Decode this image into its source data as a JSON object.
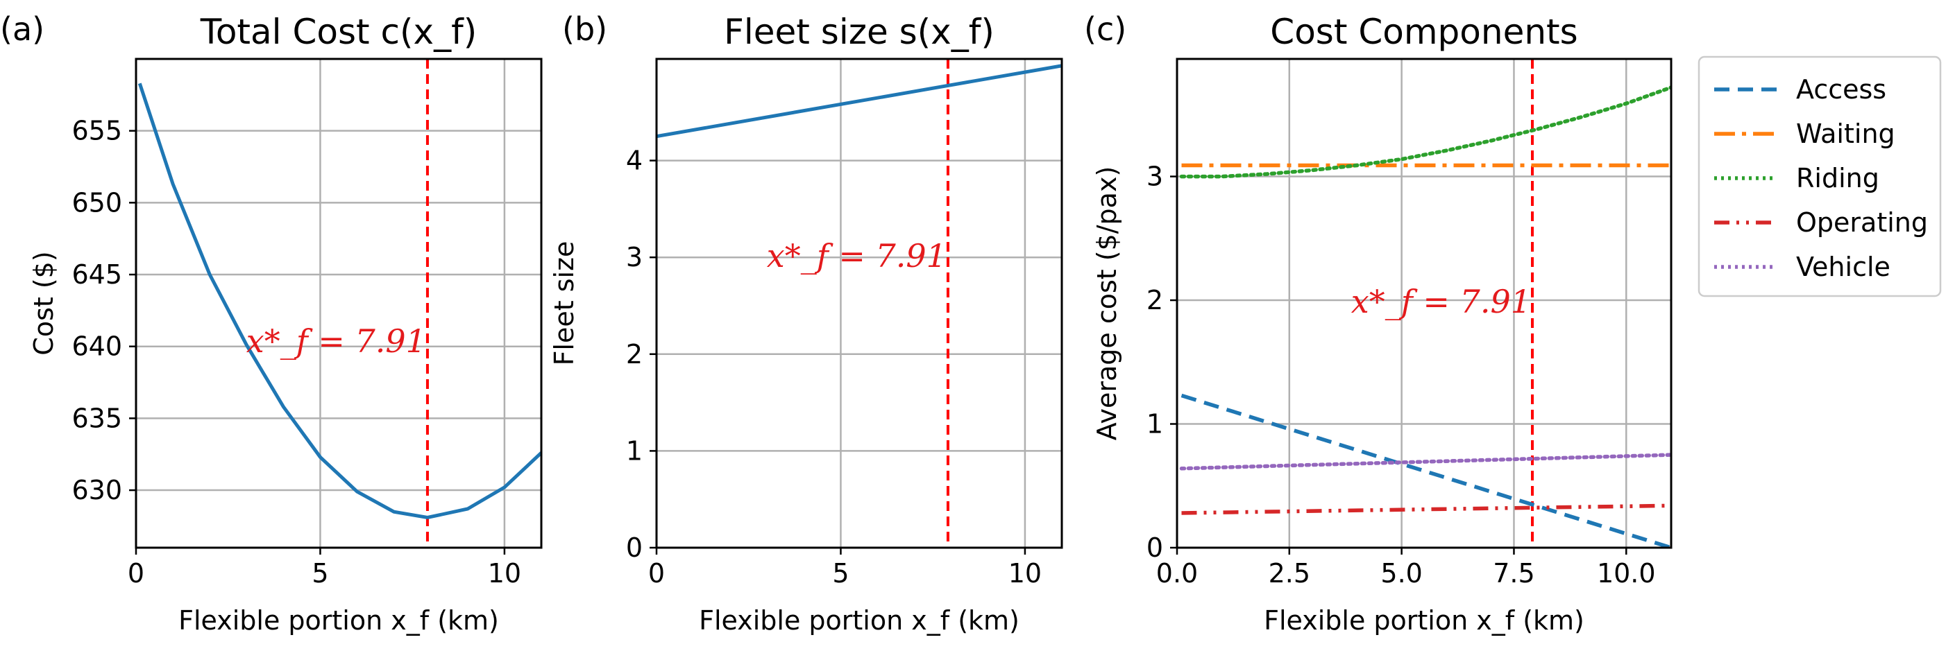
{
  "colors": {
    "blue": "#1f77b4",
    "orange": "#ff7f0e",
    "green": "#2ca02c",
    "red": "#d62728",
    "purple": "#9467bd",
    "vline": "#ff0000",
    "grid": "#b0b0b0"
  },
  "chart_data": [
    {
      "type": "line",
      "panel_label": "(a)",
      "title": "Total Cost c(x_f)",
      "xlabel": "Flexible portion x_f (km)",
      "ylabel": "Cost ($)",
      "xlim": [
        0,
        11
      ],
      "ylim": [
        626,
        660
      ],
      "xticks": [
        0,
        5,
        10
      ],
      "xtick_labels": [
        "0",
        "5",
        "10"
      ],
      "yticks": [
        630,
        635,
        640,
        645,
        650,
        655
      ],
      "ytick_labels": [
        "630",
        "635",
        "640",
        "645",
        "650",
        "655"
      ],
      "grid": true,
      "series": [
        {
          "style": "solid",
          "color": "#1f77b4",
          "x": [
            0.1,
            1,
            2,
            3,
            4,
            5,
            6,
            7,
            7.91,
            9,
            10,
            11
          ],
          "y": [
            658.3,
            651.3,
            645.0,
            640.1,
            635.8,
            632.3,
            629.9,
            628.5,
            628.1,
            628.7,
            630.2,
            632.6
          ]
        }
      ],
      "vline": {
        "x": 7.91,
        "style": "dashed",
        "color": "#ff0000"
      },
      "annotation": {
        "text": "x*_f = 7.91",
        "x": 7.91,
        "y": 639.6
      }
    },
    {
      "type": "line",
      "panel_label": "(b)",
      "title": "Fleet size s(x_f)",
      "xlabel": "Flexible portion x_f (km)",
      "ylabel": "Fleet size",
      "xlim": [
        0,
        11
      ],
      "ylim": [
        0,
        5.05
      ],
      "xticks": [
        0,
        5,
        10
      ],
      "xtick_labels": [
        "0",
        "5",
        "10"
      ],
      "yticks": [
        0,
        1,
        2,
        3,
        4
      ],
      "ytick_labels": [
        "0",
        "1",
        "2",
        "3",
        "4"
      ],
      "grid": true,
      "series": [
        {
          "style": "solid",
          "color": "#1f77b4",
          "x": [
            0,
            11
          ],
          "y": [
            4.25,
            4.98
          ]
        }
      ],
      "vline": {
        "x": 7.91,
        "style": "dashed",
        "color": "#ff0000"
      },
      "annotation": {
        "text": "x*_f = 7.91",
        "x": 7.91,
        "y": 2.9
      }
    },
    {
      "type": "line",
      "panel_label": "(c)",
      "title": "Cost Components",
      "xlabel": "Flexible portion x_f (km)",
      "ylabel": "Average cost ($/pax)",
      "xlim": [
        0,
        11
      ],
      "ylim": [
        0,
        3.95
      ],
      "xticks": [
        0,
        2.5,
        5,
        7.5,
        10
      ],
      "xtick_labels": [
        "0.0",
        "2.5",
        "5.0",
        "7.5",
        "10.0"
      ],
      "yticks": [
        0,
        1,
        2,
        3
      ],
      "ytick_labels": [
        "0",
        "1",
        "2",
        "3"
      ],
      "grid": true,
      "legend_position": "outside-right",
      "series": [
        {
          "name": "Access",
          "style": "dashed",
          "color": "#1f77b4",
          "x": [
            0.1,
            11
          ],
          "y": [
            1.23,
            0.0
          ]
        },
        {
          "name": "Waiting",
          "style": "dashdot",
          "color": "#ff7f0e",
          "x": [
            0.1,
            11
          ],
          "y": [
            3.09,
            3.09
          ]
        },
        {
          "name": "Riding",
          "style": "dotted",
          "color": "#2ca02c",
          "x": [
            0.1,
            1,
            2,
            3,
            4,
            5,
            6,
            7,
            8,
            9,
            10,
            11
          ],
          "y": [
            3.0,
            3.0,
            3.02,
            3.05,
            3.09,
            3.14,
            3.21,
            3.29,
            3.38,
            3.48,
            3.59,
            3.72
          ]
        },
        {
          "name": "Operating",
          "style": "dashdotdot",
          "color": "#d62728",
          "x": [
            0.1,
            11
          ],
          "y": [
            0.28,
            0.34
          ]
        },
        {
          "name": "Vehicle",
          "style": "dotted",
          "color": "#9467bd",
          "x": [
            0.1,
            11
          ],
          "y": [
            0.64,
            0.75
          ]
        }
      ],
      "vline": {
        "x": 7.91,
        "style": "dashed",
        "color": "#ff0000"
      },
      "annotation": {
        "text": "x*_f = 7.91",
        "x": 7.91,
        "y": 1.9
      }
    }
  ]
}
